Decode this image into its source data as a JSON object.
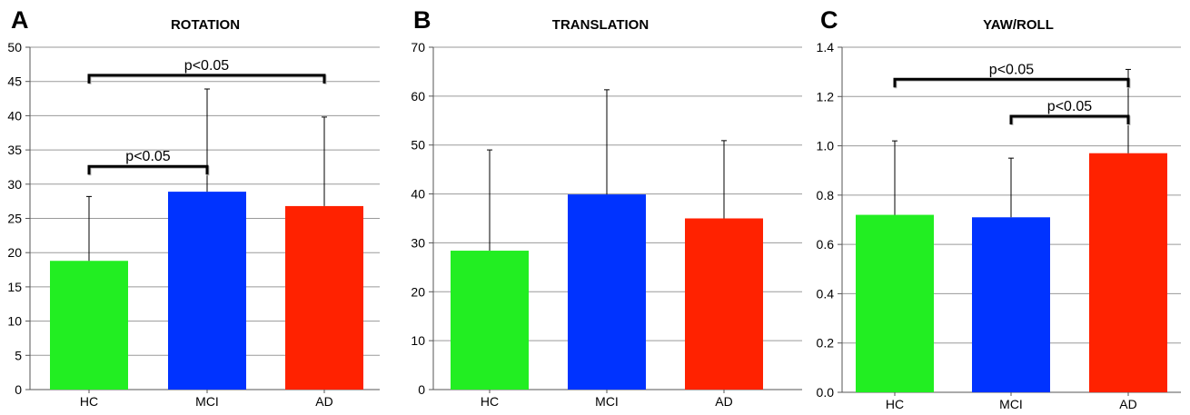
{
  "chart_data": [
    {
      "type": "bar",
      "panel_label": "A",
      "title": "ROTATION",
      "categories": [
        "HC",
        "MCI",
        "AD"
      ],
      "values": [
        18.8,
        28.9,
        26.8
      ],
      "error_upper": [
        28.2,
        43.9,
        39.8
      ],
      "colors": [
        "#22EE22",
        "#0033FF",
        "#FF2200"
      ],
      "ylim": [
        0,
        50
      ],
      "yticks": [
        "0",
        "5",
        "10",
        "15",
        "20",
        "25",
        "30",
        "35",
        "40",
        "45",
        "50"
      ],
      "grid": true,
      "significance": [
        {
          "from": 0,
          "to": 2,
          "label": "p<0.05",
          "level": 45.9
        },
        {
          "from": 0,
          "to": 1,
          "label": "p<0.05",
          "level": 32.6
        }
      ]
    },
    {
      "type": "bar",
      "panel_label": "B",
      "title": "TRANSLATION",
      "categories": [
        "HC",
        "MCI",
        "AD"
      ],
      "values": [
        28.4,
        39.9,
        35.0
      ],
      "error_upper": [
        49.0,
        61.3,
        50.9
      ],
      "colors": [
        "#22EE22",
        "#0033FF",
        "#FF2200"
      ],
      "ylim": [
        0,
        70
      ],
      "yticks": [
        "0",
        "10",
        "20",
        "30",
        "40",
        "50",
        "60",
        "70"
      ],
      "grid": true,
      "significance": []
    },
    {
      "type": "bar",
      "panel_label": "C",
      "title": "YAW/ROLL",
      "categories": [
        "HC",
        "MCI",
        "AD"
      ],
      "values": [
        0.72,
        0.71,
        0.97
      ],
      "error_upper": [
        1.02,
        0.95,
        1.31
      ],
      "colors": [
        "#22EE22",
        "#0033FF",
        "#FF2200"
      ],
      "ylim": [
        0,
        1.4
      ],
      "yticks": [
        "0.0",
        "0.2",
        "0.4",
        "0.6",
        "0.8",
        "1.0",
        "1.2",
        "1.4"
      ],
      "grid": true,
      "significance": [
        {
          "from": 0,
          "to": 2,
          "label": "p<0.05",
          "level": 1.27
        },
        {
          "from": 1,
          "to": 2,
          "label": "p<0.05",
          "level": 1.12
        }
      ]
    }
  ]
}
